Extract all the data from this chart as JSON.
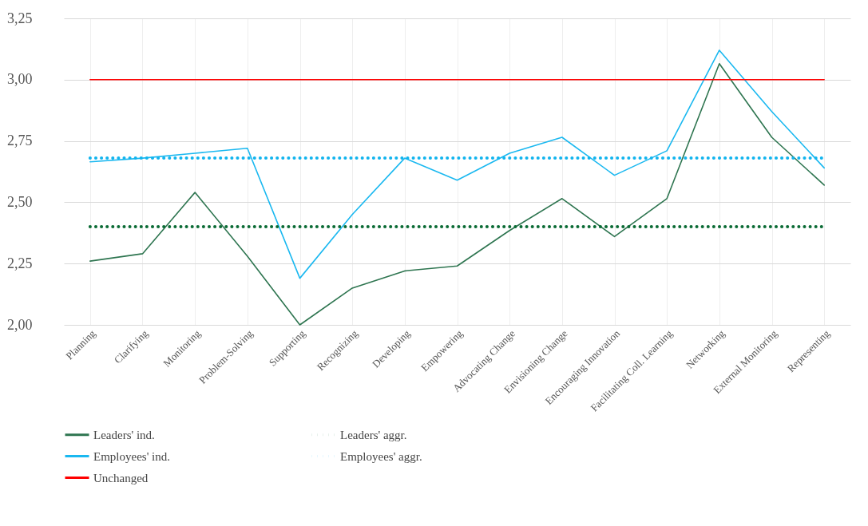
{
  "chart_data": {
    "type": "line",
    "categories": [
      "Planning",
      "Clarifying",
      "Monitoring",
      "Problem-Solving",
      "Supporting",
      "Recognizing",
      "Developing",
      "Empowering",
      "Advocating Change",
      "Envisioning Change",
      "Encouraging Innovation",
      "Facilitating Coll. Learning",
      "Networking",
      "External Monitoring",
      "Representing"
    ],
    "series": [
      {
        "name": "Leaders' ind.",
        "color": "#2e7550",
        "line_style": "solid",
        "values": [
          2.26,
          2.29,
          2.54,
          2.28,
          2.0,
          2.15,
          2.22,
          2.24,
          2.385,
          2.515,
          2.36,
          2.515,
          3.065,
          2.765,
          2.57
        ]
      },
      {
        "name": "Leaders' aggr.",
        "color": "#0b6b35",
        "line_style": "dotted",
        "values": [
          2.4,
          2.4,
          2.4,
          2.4,
          2.4,
          2.4,
          2.4,
          2.4,
          2.4,
          2.4,
          2.4,
          2.4,
          2.4,
          2.4,
          2.4
        ]
      },
      {
        "name": "Employees' ind.",
        "color": "#1ab8f0",
        "line_style": "solid",
        "values": [
          2.665,
          2.68,
          2.7,
          2.72,
          2.19,
          2.45,
          2.68,
          2.59,
          2.7,
          2.765,
          2.61,
          2.71,
          3.12,
          2.87,
          2.64
        ]
      },
      {
        "name": "Employees' aggr.",
        "color": "#11b4ee",
        "line_style": "dotted",
        "values": [
          2.68,
          2.68,
          2.68,
          2.68,
          2.68,
          2.68,
          2.68,
          2.68,
          2.68,
          2.68,
          2.68,
          2.68,
          2.68,
          2.68,
          2.68
        ]
      },
      {
        "name": "Unchanged",
        "color": "#ff0000",
        "line_style": "solid",
        "values": [
          3.0,
          3.0,
          3.0,
          3.0,
          3.0,
          3.0,
          3.0,
          3.0,
          3.0,
          3.0,
          3.0,
          3.0,
          3.0,
          3.0,
          3.0
        ]
      }
    ],
    "ylim": [
      2.0,
      3.25
    ],
    "yticks": [
      {
        "value": 2.0,
        "label": "2,00"
      },
      {
        "value": 2.25,
        "label": "2,25"
      },
      {
        "value": 2.5,
        "label": "2,50"
      },
      {
        "value": 2.75,
        "label": "2,75"
      },
      {
        "value": 3.0,
        "label": "3,00"
      },
      {
        "value": 3.25,
        "label": "3,25"
      }
    ],
    "grid": true,
    "legend": "bottom"
  }
}
